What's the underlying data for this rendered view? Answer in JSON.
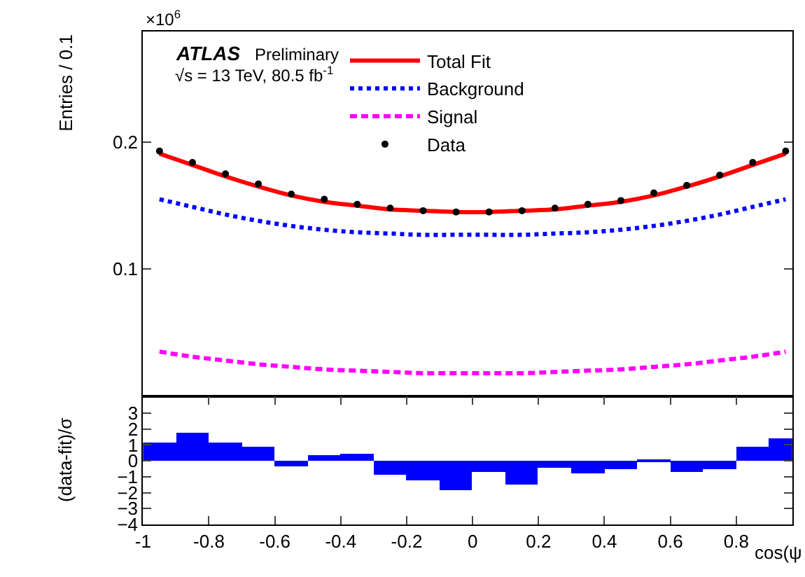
{
  "chart_data": [
    {
      "type": "line",
      "ylabel": "Entries / 0.1",
      "annotations": [
        "×10$^{6}$",
        "ATLAS",
        "Preliminary",
        "√s = 13 TeV, 80.5 fb$^{-1}$"
      ],
      "x": [
        -0.95,
        -0.85,
        -0.75,
        -0.65,
        -0.55,
        -0.45,
        -0.35,
        -0.25,
        -0.15,
        -0.05,
        0.05,
        0.15,
        0.25,
        0.35,
        0.45,
        0.55,
        0.65,
        0.75,
        0.85,
        0.95
      ],
      "xlim": [
        -1,
        0.97
      ],
      "ylim": [
        0,
        0.287
      ],
      "yticks": [
        0.1,
        0.2
      ],
      "tick_labels": "y",
      "legend": "top",
      "series": [
        {
          "name": "Data",
          "type": "scatter",
          "marker": "circle",
          "color": "#000000",
          "values": [
            0.193,
            0.184,
            0.175,
            0.167,
            0.159,
            0.155,
            0.151,
            0.148,
            0.146,
            0.145,
            0.145,
            0.146,
            0.148,
            0.151,
            0.154,
            0.16,
            0.166,
            0.174,
            0.184,
            0.193
          ]
        },
        {
          "name": "Total Fit",
          "type": "line",
          "line_style": "solid",
          "color": "#ff0000",
          "values": [
            0.191,
            0.182,
            0.173,
            0.165,
            0.158,
            0.153,
            0.15,
            0.147,
            0.146,
            0.145,
            0.145,
            0.146,
            0.147,
            0.15,
            0.153,
            0.158,
            0.165,
            0.173,
            0.182,
            0.191
          ]
        },
        {
          "name": "Background",
          "type": "line",
          "line_style": "dotted",
          "color": "#0000ff",
          "values": [
            0.155,
            0.149,
            0.143,
            0.138,
            0.134,
            0.131,
            0.129,
            0.128,
            0.127,
            0.127,
            0.127,
            0.127,
            0.128,
            0.129,
            0.131,
            0.134,
            0.138,
            0.143,
            0.149,
            0.155
          ]
        },
        {
          "name": "Signal",
          "type": "line",
          "line_style": "dashed",
          "color": "#ff00ff",
          "values": [
            0.035,
            0.031,
            0.028,
            0.025,
            0.023,
            0.021,
            0.02,
            0.019,
            0.018,
            0.018,
            0.018,
            0.018,
            0.019,
            0.02,
            0.021,
            0.023,
            0.025,
            0.028,
            0.031,
            0.035
          ]
        }
      ]
    },
    {
      "type": "bar",
      "ylabel": "(data-fit)/σ",
      "xlabel": "cos(ψ",
      "x": [
        -0.95,
        -0.85,
        -0.75,
        -0.65,
        -0.55,
        -0.45,
        -0.35,
        -0.25,
        -0.15,
        -0.05,
        0.05,
        0.15,
        0.25,
        0.35,
        0.45,
        0.55,
        0.65,
        0.75,
        0.85,
        0.95
      ],
      "xlim": [
        -1,
        0.97
      ],
      "xticks": [
        -1,
        -0.8,
        -0.6,
        -0.4,
        -0.2,
        0,
        0.2,
        0.4,
        0.6,
        0.8
      ],
      "ylim": [
        -4,
        4.07
      ],
      "yticks": [
        -4,
        -3,
        -2,
        -1,
        0,
        1,
        2,
        3
      ],
      "legend": false,
      "series": [
        {
          "color": "#0000ff",
          "values": [
            1.2,
            1.8,
            1.2,
            0.9,
            -0.3,
            0.4,
            0.5,
            -0.9,
            -1.2,
            -1.8,
            -0.7,
            -1.5,
            -0.4,
            -0.8,
            -0.5,
            0.1,
            -0.7,
            -0.5,
            0.9,
            1.4
          ]
        }
      ]
    }
  ]
}
